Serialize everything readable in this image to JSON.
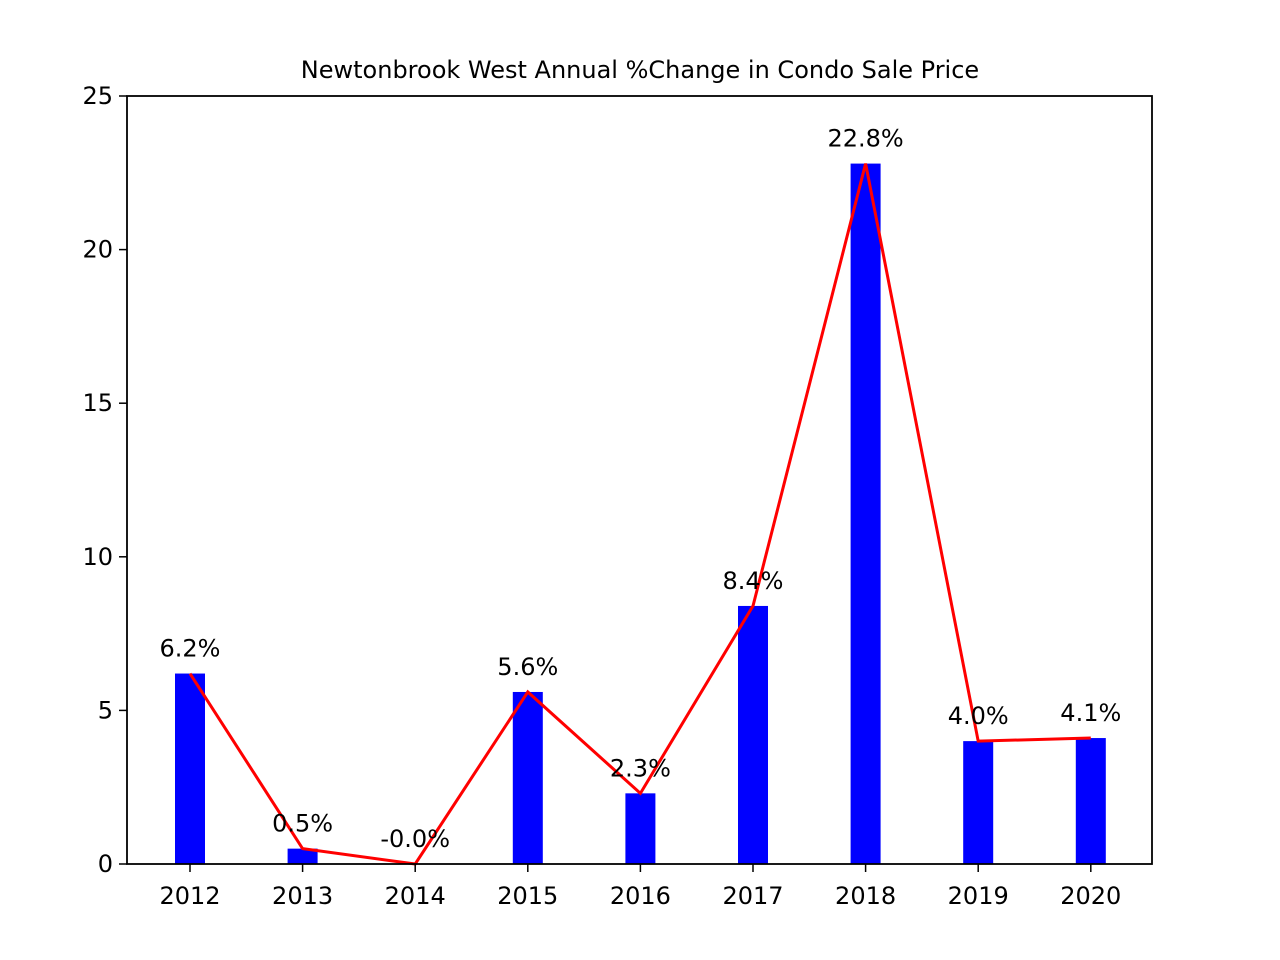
{
  "chart_data": {
    "type": "bar",
    "title": "Newtonbrook West Annual %Change in Condo Sale Price",
    "xlabel": "",
    "ylabel": "",
    "categories": [
      "2012",
      "2013",
      "2014",
      "2015",
      "2016",
      "2017",
      "2018",
      "2019",
      "2020"
    ],
    "values": [
      6.2,
      0.5,
      0.0,
      5.6,
      2.3,
      8.4,
      22.8,
      4.0,
      4.1
    ],
    "data_labels": [
      "6.2%",
      "0.5%",
      "-0.0%",
      "5.6%",
      "2.3%",
      "8.4%",
      "22.8%",
      "4.0%",
      "4.1%"
    ],
    "line_overlay": true,
    "ylim": [
      0,
      25
    ],
    "yticks": [
      "0",
      "5",
      "10",
      "15",
      "20",
      "25"
    ],
    "grid": false,
    "legend": "none",
    "colors": {
      "bar": "#0000ff",
      "line": "#ff0000"
    }
  }
}
